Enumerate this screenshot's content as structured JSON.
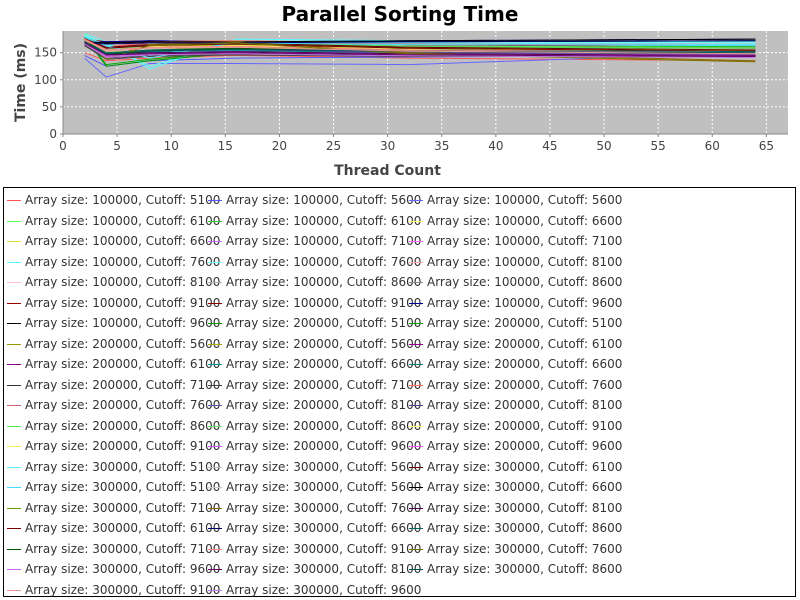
{
  "chart_data": {
    "type": "line",
    "title": "Parallel Sorting Time",
    "xlabel": "Thread Count",
    "ylabel": "Time (ms)",
    "xlim": [
      0,
      67
    ],
    "ylim": [
      0,
      190
    ],
    "xticks": [
      0,
      5,
      10,
      15,
      20,
      25,
      30,
      35,
      40,
      45,
      50,
      55,
      60,
      65
    ],
    "yticks": [
      0,
      50,
      100,
      150
    ],
    "grid": true,
    "legend_position": "bottom",
    "series": [
      {
        "name": "Array size: 100000, Cutoff: 5100",
        "color": "#ff5555",
        "x": [
          2,
          4,
          8,
          16,
          32,
          64
        ],
        "y": [
          150,
          135,
          140,
          145,
          140,
          135
        ]
      },
      {
        "name": "Array size: 100000, Cutoff: 5600",
        "color": "#5555ff",
        "x": [
          2,
          4,
          8,
          16,
          32,
          64
        ],
        "y": [
          145,
          125,
          135,
          140,
          142,
          145
        ]
      },
      {
        "name": "Array size: 100000, Cutoff: 5600",
        "color": "#6666ff",
        "x": [
          2,
          4,
          8,
          16,
          32,
          64
        ],
        "y": [
          140,
          105,
          130,
          130,
          128,
          150
        ]
      },
      {
        "name": "Array size: 100000, Cutoff: 6100",
        "color": "#55ff55",
        "x": [
          2,
          4,
          8,
          16,
          32,
          64
        ],
        "y": [
          185,
          150,
          165,
          170,
          165,
          160
        ]
      },
      {
        "name": "Array size: 100000, Cutoff: 6100",
        "color": "#33cc33",
        "x": [
          2,
          4,
          8,
          16,
          32,
          64
        ],
        "y": [
          180,
          140,
          160,
          168,
          160,
          162
        ]
      },
      {
        "name": "Array size: 100000, Cutoff: 6600",
        "color": "#ffff55",
        "x": [
          2,
          4,
          8,
          16,
          32,
          64
        ],
        "y": [
          178,
          145,
          162,
          165,
          158,
          155
        ]
      },
      {
        "name": "Array size: 100000, Cutoff: 6600",
        "color": "#dddd33",
        "x": [
          2,
          4,
          8,
          16,
          32,
          64
        ],
        "y": [
          176,
          142,
          158,
          162,
          155,
          150
        ]
      },
      {
        "name": "Array size: 100000, Cutoff: 7100",
        "color": "#cc66ff",
        "x": [
          2,
          4,
          8,
          16,
          32,
          64
        ],
        "y": [
          175,
          145,
          150,
          155,
          150,
          148
        ]
      },
      {
        "name": "Array size: 100000, Cutoff: 7100",
        "color": "#ff66ff",
        "x": [
          2,
          4,
          8,
          16,
          32,
          64
        ],
        "y": [
          172,
          140,
          148,
          150,
          145,
          143
        ]
      },
      {
        "name": "Array size: 100000, Cutoff: 7600",
        "color": "#55ffff",
        "x": [
          2,
          4,
          8,
          16,
          32,
          64
        ],
        "y": [
          185,
          170,
          120,
          175,
          172,
          170
        ]
      },
      {
        "name": "Array size: 100000, Cutoff: 7600",
        "color": "#66ffff",
        "x": [
          2,
          4,
          8,
          16,
          32,
          64
        ],
        "y": [
          182,
          165,
          125,
          172,
          170,
          168
        ]
      },
      {
        "name": "Array size: 100000, Cutoff: 8100",
        "color": "#ffaaaa",
        "x": [
          2,
          4,
          8,
          16,
          32,
          64
        ],
        "y": [
          170,
          150,
          155,
          160,
          152,
          150
        ]
      },
      {
        "name": "Array size: 100000, Cutoff: 8100",
        "color": "#ffbbdd",
        "x": [
          2,
          4,
          8,
          16,
          32,
          64
        ],
        "y": [
          168,
          148,
          152,
          158,
          150,
          148
        ]
      },
      {
        "name": "Array size: 100000, Cutoff: 8600",
        "color": "#aaaaaa",
        "x": [
          2,
          4,
          8,
          16,
          32,
          64
        ],
        "y": [
          165,
          150,
          150,
          155,
          150,
          148
        ]
      },
      {
        "name": "Array size: 100000, Cutoff: 8600",
        "color": "#888888",
        "x": [
          2,
          4,
          8,
          16,
          32,
          64
        ],
        "y": [
          162,
          148,
          148,
          152,
          148,
          146
        ]
      },
      {
        "name": "Array size: 100000, Cutoff: 9100",
        "color": "#990000",
        "x": [
          2,
          4,
          8,
          16,
          32,
          64
        ],
        "y": [
          175,
          170,
          172,
          170,
          165,
          160
        ]
      },
      {
        "name": "Array size: 100000, Cutoff: 9100",
        "color": "#880000",
        "x": [
          2,
          4,
          8,
          16,
          32,
          64
        ],
        "y": [
          172,
          168,
          170,
          168,
          162,
          158
        ]
      },
      {
        "name": "Array size: 100000, Cutoff: 9600",
        "color": "#000099",
        "x": [
          2,
          4,
          8,
          16,
          32,
          64
        ],
        "y": [
          170,
          170,
          172,
          170,
          172,
          175
        ]
      },
      {
        "name": "Array size: 100000, Cutoff: 9600",
        "color": "#000000",
        "x": [
          2,
          4,
          8,
          16,
          32,
          64
        ],
        "y": [
          168,
          168,
          170,
          168,
          170,
          172
        ]
      },
      {
        "name": "Array size: 200000, Cutoff: 5100",
        "color": "#009900",
        "x": [
          2,
          4,
          8,
          16,
          32,
          64
        ],
        "y": [
          180,
          125,
          135,
          150,
          155,
          165
        ]
      },
      {
        "name": "Array size: 200000, Cutoff: 5100",
        "color": "#00aa00",
        "x": [
          2,
          4,
          8,
          16,
          32,
          64
        ],
        "y": [
          178,
          128,
          138,
          152,
          158,
          162
        ]
      },
      {
        "name": "Array size: 200000, Cutoff: 5600",
        "color": "#999900",
        "x": [
          2,
          4,
          8,
          16,
          32,
          64
        ],
        "y": [
          175,
          150,
          160,
          165,
          155,
          150
        ]
      },
      {
        "name": "Array size: 200000, Cutoff: 5600",
        "color": "#aaaa00",
        "x": [
          2,
          4,
          8,
          16,
          32,
          64
        ],
        "y": [
          173,
          148,
          158,
          162,
          152,
          148
        ]
      },
      {
        "name": "Array size: 200000, Cutoff: 6100",
        "color": "#990099",
        "x": [
          2,
          4,
          8,
          16,
          32,
          64
        ],
        "y": [
          170,
          145,
          150,
          152,
          148,
          145
        ]
      },
      {
        "name": "Array size: 200000, Cutoff: 6100",
        "color": "#880088",
        "x": [
          2,
          4,
          8,
          16,
          32,
          64
        ],
        "y": [
          168,
          143,
          148,
          150,
          146,
          143
        ]
      },
      {
        "name": "Array size: 200000, Cutoff: 6600",
        "color": "#009999",
        "x": [
          2,
          4,
          8,
          16,
          32,
          64
        ],
        "y": [
          172,
          148,
          152,
          155,
          150,
          148
        ]
      },
      {
        "name": "Array size: 200000, Cutoff: 6600",
        "color": "#008888",
        "x": [
          2,
          4,
          8,
          16,
          32,
          64
        ],
        "y": [
          170,
          146,
          150,
          153,
          148,
          146
        ]
      },
      {
        "name": "Array size: 200000, Cutoff: 7100",
        "color": "#333333",
        "x": [
          2,
          4,
          8,
          16,
          32,
          64
        ],
        "y": [
          165,
          140,
          145,
          148,
          145,
          145
        ]
      },
      {
        "name": "Array size: 200000, Cutoff: 7100",
        "color": "#444444",
        "x": [
          2,
          4,
          8,
          16,
          32,
          64
        ],
        "y": [
          163,
          138,
          143,
          146,
          143,
          143
        ]
      },
      {
        "name": "Array size: 200000, Cutoff: 7600",
        "color": "#ff6655",
        "x": [
          2,
          4,
          8,
          16,
          32,
          64
        ],
        "y": [
          178,
          160,
          170,
          172,
          168,
          165
        ]
      },
      {
        "name": "Array size: 200000, Cutoff: 7600",
        "color": "#cc6677",
        "x": [
          2,
          4,
          8,
          16,
          32,
          64
        ],
        "y": [
          176,
          158,
          168,
          170,
          166,
          163
        ]
      },
      {
        "name": "Array size: 200000, Cutoff: 8100",
        "color": "#5555aa",
        "x": [
          2,
          4,
          8,
          16,
          32,
          64
        ],
        "y": [
          168,
          150,
          155,
          158,
          152,
          150
        ]
      },
      {
        "name": "Array size: 200000, Cutoff: 8100",
        "color": "#444499",
        "x": [
          2,
          4,
          8,
          16,
          32,
          64
        ],
        "y": [
          166,
          148,
          153,
          156,
          150,
          148
        ]
      },
      {
        "name": "Array size: 200000, Cutoff: 8600",
        "color": "#55ee55",
        "x": [
          2,
          4,
          8,
          16,
          32,
          64
        ],
        "y": [
          180,
          155,
          165,
          168,
          162,
          160
        ]
      },
      {
        "name": "Array size: 200000, Cutoff: 8600",
        "color": "#66dd66",
        "x": [
          2,
          4,
          8,
          16,
          32,
          64
        ],
        "y": [
          178,
          153,
          163,
          166,
          160,
          158
        ]
      },
      {
        "name": "Array size: 200000, Cutoff: 9100",
        "color": "#ffff66",
        "x": [
          2,
          4,
          8,
          16,
          32,
          64
        ],
        "y": [
          175,
          150,
          160,
          163,
          158,
          155
        ]
      },
      {
        "name": "Array size: 200000, Cutoff: 9100",
        "color": "#eeee55",
        "x": [
          2,
          4,
          8,
          16,
          32,
          64
        ],
        "y": [
          173,
          148,
          158,
          161,
          156,
          153
        ]
      },
      {
        "name": "Array size: 200000, Cutoff: 9600",
        "color": "#cc55ff",
        "x": [
          2,
          4,
          8,
          16,
          32,
          64
        ],
        "y": [
          170,
          145,
          150,
          152,
          148,
          146
        ]
      },
      {
        "name": "Array size: 200000, Cutoff: 9600",
        "color": "#ee55ee",
        "x": [
          2,
          4,
          8,
          16,
          32,
          64
        ],
        "y": [
          168,
          143,
          148,
          150,
          146,
          144
        ]
      },
      {
        "name": "Array size: 300000, Cutoff: 5100",
        "color": "#55eeff",
        "x": [
          2,
          4,
          8,
          16,
          32,
          64
        ],
        "y": [
          180,
          165,
          140,
          170,
          168,
          165
        ]
      },
      {
        "name": "Array size: 300000, Cutoff: 5600",
        "color": "#bbbbbb",
        "x": [
          2,
          4,
          8,
          16,
          32,
          64
        ],
        "y": [
          175,
          155,
          158,
          160,
          155,
          152
        ]
      },
      {
        "name": "Array size: 300000, Cutoff: 6100",
        "color": "#660000",
        "x": [
          2,
          4,
          8,
          16,
          32,
          64
        ],
        "y": [
          178,
          160,
          165,
          168,
          160,
          155
        ]
      },
      {
        "name": "Array size: 300000, Cutoff: 5100",
        "color": "#44ddff",
        "x": [
          2,
          4,
          8,
          16,
          32,
          64
        ],
        "y": [
          178,
          162,
          145,
          168,
          165,
          163
        ]
      },
      {
        "name": "Array size: 300000, Cutoff: 5600",
        "color": "#cccccc",
        "x": [
          2,
          4,
          8,
          16,
          32,
          64
        ],
        "y": [
          173,
          153,
          156,
          158,
          153,
          150
        ]
      },
      {
        "name": "Array size: 300000, Cutoff: 6600",
        "color": "#000000",
        "x": [
          2,
          4,
          8,
          16,
          32,
          64
        ],
        "y": [
          170,
          168,
          170,
          170,
          172,
          175
        ]
      },
      {
        "name": "Array size: 300000, Cutoff: 7100",
        "color": "#669900",
        "x": [
          2,
          4,
          8,
          16,
          32,
          64
        ],
        "y": [
          176,
          148,
          155,
          160,
          155,
          150
        ]
      },
      {
        "name": "Array size: 300000, Cutoff: 7600",
        "color": "#886600",
        "x": [
          2,
          4,
          8,
          16,
          32,
          64
        ],
        "y": [
          176,
          140,
          165,
          170,
          150,
          135
        ]
      },
      {
        "name": "Array size: 300000, Cutoff: 8100",
        "color": "#550055",
        "x": [
          2,
          4,
          8,
          16,
          32,
          64
        ],
        "y": [
          170,
          148,
          150,
          152,
          148,
          145
        ]
      },
      {
        "name": "Array size: 300000, Cutoff: 6100",
        "color": "#770000",
        "x": [
          2,
          4,
          8,
          16,
          32,
          64
        ],
        "y": [
          176,
          158,
          163,
          166,
          158,
          153
        ]
      },
      {
        "name": "Array size: 300000, Cutoff: 6600",
        "color": "#000066",
        "x": [
          2,
          4,
          8,
          16,
          32,
          64
        ],
        "y": [
          168,
          166,
          168,
          168,
          170,
          172
        ]
      },
      {
        "name": "Array size: 300000, Cutoff: 8600",
        "color": "#006666",
        "x": [
          2,
          4,
          8,
          16,
          32,
          64
        ],
        "y": [
          172,
          150,
          155,
          158,
          155,
          152
        ]
      },
      {
        "name": "Array size: 300000, Cutoff: 7100",
        "color": "#005500",
        "x": [
          2,
          4,
          8,
          16,
          32,
          64
        ],
        "y": [
          174,
          146,
          153,
          158,
          153,
          148
        ]
      },
      {
        "name": "Array size: 300000, Cutoff: 9100",
        "color": "#ff8888",
        "x": [
          2,
          4,
          8,
          16,
          32,
          64
        ],
        "y": [
          175,
          155,
          160,
          162,
          155,
          150
        ]
      },
      {
        "name": "Array size: 300000, Cutoff: 7600",
        "color": "#777700",
        "x": [
          2,
          4,
          8,
          16,
          32,
          64
        ],
        "y": [
          174,
          138,
          163,
          168,
          148,
          133
        ]
      },
      {
        "name": "Array size: 300000, Cutoff: 9600",
        "color": "#cc66ee",
        "x": [
          2,
          4,
          8,
          16,
          32,
          64
        ],
        "y": [
          168,
          143,
          148,
          150,
          146,
          143
        ]
      },
      {
        "name": "Array size: 300000, Cutoff: 8100",
        "color": "#660066",
        "x": [
          2,
          4,
          8,
          16,
          32,
          64
        ],
        "y": [
          168,
          146,
          148,
          150,
          146,
          143
        ]
      },
      {
        "name": "Array size: 300000, Cutoff: 8600",
        "color": "#005555",
        "x": [
          2,
          4,
          8,
          16,
          32,
          64
        ],
        "y": [
          170,
          148,
          153,
          156,
          153,
          150
        ]
      },
      {
        "name": "Array size: 300000, Cutoff: 9100",
        "color": "#ee9999",
        "x": [
          2,
          4,
          8,
          16,
          32,
          64
        ],
        "y": [
          173,
          153,
          158,
          160,
          153,
          148
        ]
      },
      {
        "name": "Array size: 300000, Cutoff: 9600",
        "color": "#bb77dd",
        "x": [
          2,
          4,
          8,
          16,
          32,
          64
        ],
        "y": [
          166,
          141,
          146,
          148,
          144,
          141
        ]
      }
    ]
  }
}
